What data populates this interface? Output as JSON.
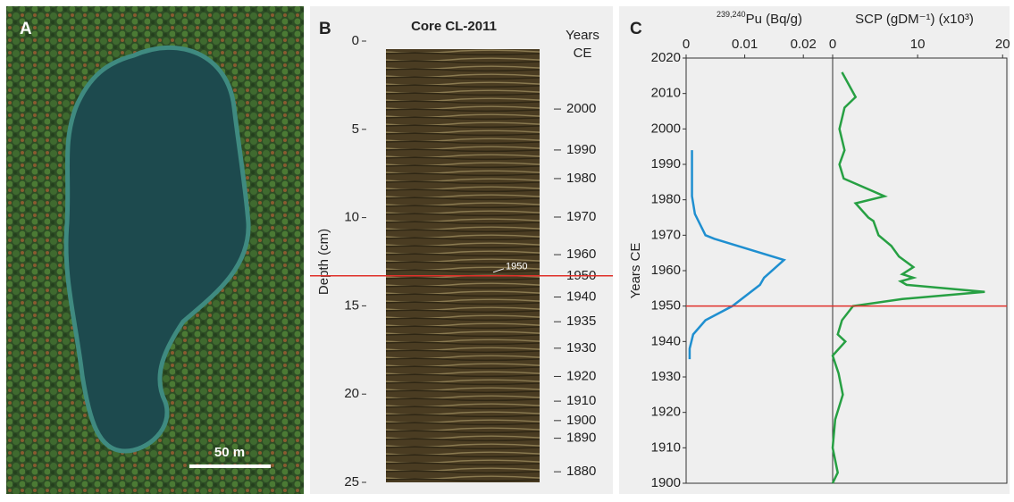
{
  "photo": {
    "label": "A",
    "scale_bar": "50 m"
  },
  "chart_data": [
    {
      "type": "core",
      "label": "B",
      "title": "Core CL-2011",
      "ylabel": "Depth (cm)",
      "ylim": [
        0,
        25
      ],
      "yticks": [
        0,
        5,
        10,
        15,
        20,
        25
      ],
      "year_axis_label": [
        "Years",
        "CE"
      ],
      "year_ticks": [
        {
          "value": 3.85,
          "label": "2000"
        },
        {
          "value": 6.17,
          "label": "1990"
        },
        {
          "value": 7.79,
          "label": "1980"
        },
        {
          "value": 9.97,
          "label": "1970"
        },
        {
          "value": 12.1,
          "label": "1960"
        },
        {
          "value": 13.3,
          "label": "1950"
        },
        {
          "value": 14.5,
          "label": "1940"
        },
        {
          "value": 15.9,
          "label": "1935"
        },
        {
          "value": 17.4,
          "label": "1930"
        },
        {
          "value": 19.0,
          "label": "1920"
        },
        {
          "value": 20.4,
          "label": "1910"
        },
        {
          "value": 21.5,
          "label": "1900"
        },
        {
          "value": 22.5,
          "label": "1890"
        },
        {
          "value": 24.4,
          "label": "1880"
        }
      ],
      "marker_depth": 13.3,
      "marker_color": "#e0302a",
      "annotation": "1950"
    },
    {
      "type": "profile",
      "label": "C",
      "ylabel": "Years CE",
      "ylim": [
        1900,
        2020
      ],
      "yticks": [
        1900,
        1910,
        1920,
        1930,
        1940,
        1950,
        1960,
        1970,
        1980,
        1990,
        2000,
        2010,
        2020
      ],
      "marker_year": 1950,
      "marker_color": "#e0302a",
      "series": [
        {
          "isotope": "239,240",
          "name": "Pu (Bq/g)",
          "color": "#1f8fd0",
          "xlim": [
            0,
            0.025
          ],
          "xticks": [
            0,
            0.01,
            0.02
          ],
          "y": [
            1994,
            1981,
            1976,
            1970,
            1969,
            1963,
            1958,
            1956,
            1950,
            1946,
            1942,
            1938,
            1935
          ],
          "values": [
            0.001,
            0.001,
            0.0015,
            0.0033,
            0.0048,
            0.0167,
            0.0133,
            0.0126,
            0.0079,
            0.0033,
            0.0012,
            0.0006,
            0.0006
          ]
        },
        {
          "name": "SCP (gDM⁻¹) (x10³)",
          "color": "#27a043",
          "xlim": [
            0,
            20.5
          ],
          "xticks": [
            0,
            10,
            20
          ],
          "y": [
            2016,
            2009,
            2006,
            2000,
            1994,
            1990,
            1986,
            1981,
            1979,
            1975,
            1974,
            1970,
            1967,
            1964,
            1961,
            1959,
            1958,
            1957,
            1956,
            1954,
            1952,
            1950,
            1946,
            1942,
            1940,
            1936,
            1931,
            1925,
            1918,
            1910,
            1903,
            1900
          ],
          "values": [
            1.1,
            2.7,
            1.4,
            0.8,
            1.4,
            0.8,
            1.3,
            6.1,
            2.7,
            4.2,
            4.8,
            5.4,
            6.9,
            7.8,
            9.5,
            8.2,
            9.5,
            8.0,
            8.7,
            17.9,
            8.2,
            2.4,
            1.1,
            0.6,
            1.5,
            0,
            0.7,
            1.2,
            0.3,
            0,
            0.6,
            0
          ]
        }
      ]
    }
  ]
}
